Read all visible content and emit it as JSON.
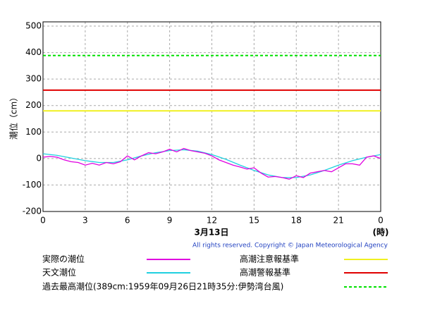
{
  "chart_data": {
    "type": "line",
    "y_label": "潮位（cm）",
    "x_label": "3月13日",
    "x_unit": "(時)",
    "copyright": "All rights reserved. Copyright © Japan Meteorological Agency",
    "xlim": [
      0,
      24
    ],
    "xticks": [
      0,
      3,
      6,
      9,
      12,
      15,
      18,
      21,
      {
        "value": 24,
        "label": "0"
      }
    ],
    "ylim": [
      -200,
      516
    ],
    "yticks": [
      -200,
      -100,
      0,
      100,
      200,
      300,
      400,
      500
    ],
    "grid": true,
    "series": [
      {
        "name": "実際の潮位",
        "color": "#e000e0",
        "x": [
          0,
          0.5,
          1,
          1.5,
          2,
          2.5,
          3,
          3.5,
          4,
          4.5,
          5,
          5.5,
          6,
          6.5,
          7,
          7.5,
          8,
          8.5,
          9,
          9.5,
          10,
          10.5,
          11,
          11.5,
          12,
          12.5,
          13,
          13.5,
          14,
          14.5,
          15,
          15.5,
          16,
          16.5,
          17,
          17.5,
          18,
          18.5,
          19,
          19.5,
          20,
          20.5,
          21,
          21.5,
          22,
          22.5,
          23,
          23.5,
          24
        ],
        "values": [
          5,
          8,
          5,
          -5,
          -12,
          -15,
          -25,
          -18,
          -25,
          -15,
          -20,
          -12,
          10,
          -5,
          10,
          22,
          18,
          25,
          35,
          25,
          38,
          30,
          25,
          20,
          10,
          -5,
          -15,
          -25,
          -32,
          -40,
          -35,
          -55,
          -70,
          -68,
          -72,
          -78,
          -65,
          -72,
          -55,
          -50,
          -45,
          -50,
          -35,
          -20,
          -20,
          -25,
          5,
          10,
          0
        ]
      },
      {
        "name": "天文潮位",
        "color": "#20d0e0",
        "x": [
          0,
          1,
          2,
          3,
          4,
          5,
          6,
          7,
          8,
          9,
          10,
          11,
          12,
          13,
          14,
          15,
          16,
          17,
          18,
          19,
          20,
          21,
          22,
          23,
          24
        ],
        "values": [
          18,
          12,
          2,
          -8,
          -15,
          -15,
          -5,
          10,
          22,
          30,
          33,
          28,
          15,
          -3,
          -25,
          -45,
          -62,
          -72,
          -72,
          -62,
          -45,
          -25,
          -8,
          5,
          15
        ]
      }
    ],
    "reference_lines": [
      {
        "name": "過去最高潮位(389cm:1959年09月26日21時35分:伊勢湾台風)",
        "color": "#00e000",
        "value": 389,
        "dashed": true
      },
      {
        "name": "高潮注意報基準",
        "color": "#f0f020",
        "value": 180,
        "dashed": false
      },
      {
        "name": "高潮警報基準",
        "color": "#e00000",
        "value": 258,
        "dashed": false
      }
    ]
  }
}
